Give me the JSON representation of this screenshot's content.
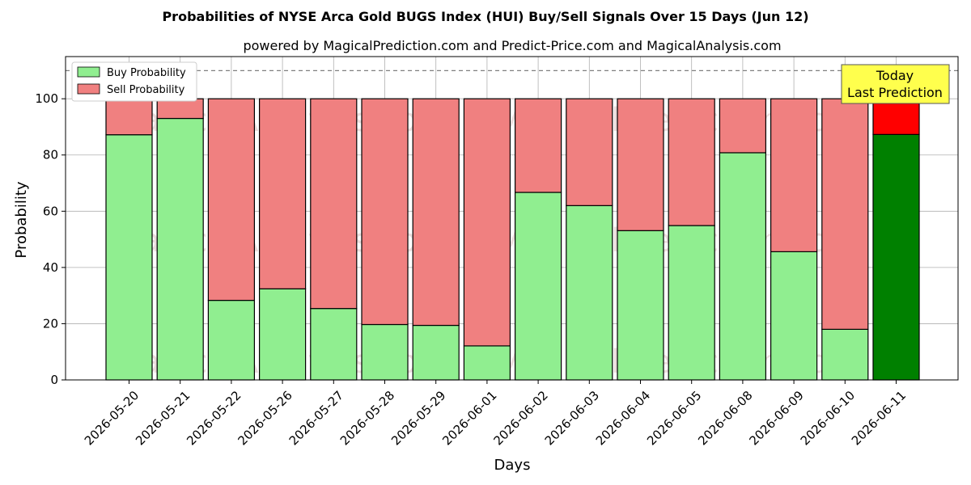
{
  "chart_data": {
    "type": "bar",
    "stacked": true,
    "title": "Probabilities of NYSE Arca Gold BUGS Index (HUI) Buy/Sell Signals Over 15 Days (Jun 12)",
    "subtitle": "powered by MagicalPrediction.com and Predict-Price.com and MagicalAnalysis.com",
    "xlabel": "Days",
    "ylabel": "Probability",
    "ylim": [
      0,
      115
    ],
    "yticks": [
      "0",
      "20",
      "40",
      "60",
      "80",
      "100"
    ],
    "yticks_values": [
      0,
      20,
      40,
      60,
      80,
      100
    ],
    "reference_line": 110,
    "grid": true,
    "legend_position": "top-left",
    "categories": [
      "2026-05-20",
      "2026-05-21",
      "2026-05-22",
      "2026-05-26",
      "2026-05-27",
      "2026-05-28",
      "2026-05-29",
      "2026-06-01",
      "2026-06-02",
      "2026-06-03",
      "2026-06-04",
      "2026-06-05",
      "2026-06-08",
      "2026-06-09",
      "2026-06-10",
      "2026-06-11"
    ],
    "series": [
      {
        "name": "Buy Probability",
        "color": "#90ee90",
        "highlight_color": "#008000",
        "values": [
          87.2,
          93.0,
          28.3,
          32.4,
          25.4,
          19.7,
          19.4,
          12.1,
          66.7,
          62.0,
          53.1,
          54.9,
          80.8,
          45.6,
          18.0,
          87.3
        ]
      },
      {
        "name": "Sell Probability",
        "color": "#f08080",
        "highlight_color": "#ff0000",
        "values": [
          12.8,
          7.0,
          71.7,
          67.6,
          74.6,
          80.3,
          80.6,
          87.9,
          33.3,
          38.0,
          46.9,
          45.1,
          19.2,
          54.4,
          82.0,
          12.7
        ]
      }
    ],
    "highlight_index": 15,
    "annotation": {
      "line1": "Today",
      "line2": "Last Prediction",
      "bg_color": "#ffff4d"
    },
    "watermarks": [
      "MagicalAnalysis.com",
      "MagicalPrediction.com"
    ]
  }
}
